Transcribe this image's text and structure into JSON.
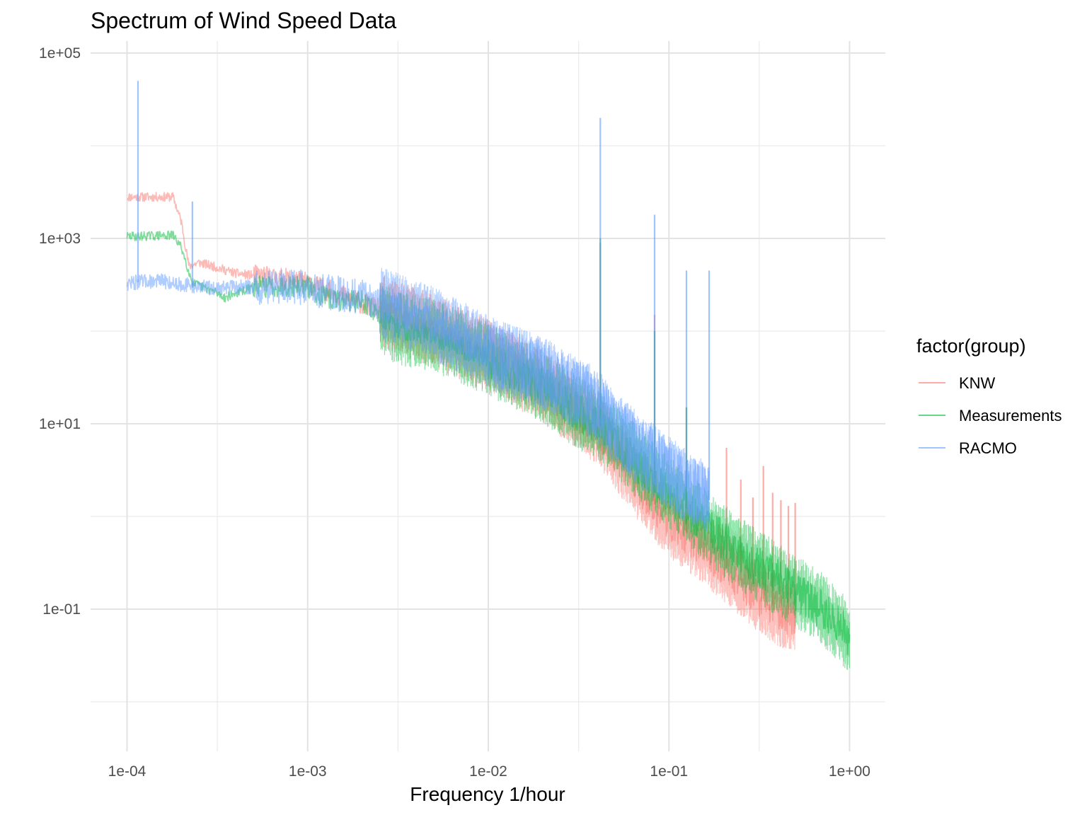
{
  "chart_data": {
    "type": "line",
    "title": "Spectrum of Wind Speed Data",
    "xlabel": "Frequency 1/hour",
    "ylabel": "",
    "x_scale": "log10",
    "y_scale": "log10",
    "xlim": [
      0.0001,
      1.0
    ],
    "ylim": [
      0.001,
      100000
    ],
    "x_ticks": [
      0.0001,
      0.001,
      0.01,
      0.1,
      1.0
    ],
    "x_tick_labels": [
      "1e-04",
      "1e-03",
      "1e-02",
      "1e-01",
      "1e+00"
    ],
    "y_ticks": [
      0.1,
      10,
      1000,
      100000
    ],
    "y_tick_labels": [
      "1e-01",
      "1e+01",
      "1e+03",
      "1e+05"
    ],
    "grid": true,
    "legend": {
      "title": "factor(group)",
      "position": "right"
    },
    "series": [
      {
        "name": "KNW",
        "color": "#F8766D",
        "x_max": 0.5,
        "points": [
          [
            0.0001,
            2800
          ],
          [
            0.00018,
            2800
          ],
          [
            0.0002,
            1500
          ],
          [
            0.00022,
            500
          ],
          [
            0.00025,
            550
          ],
          [
            0.0003,
            500
          ],
          [
            0.0004,
            420
          ],
          [
            0.0006,
            380
          ],
          [
            0.0008,
            360
          ],
          [
            0.001,
            330
          ],
          [
            0.002,
            200
          ],
          [
            0.003,
            150
          ],
          [
            0.005,
            100
          ],
          [
            0.01,
            55
          ],
          [
            0.02,
            25
          ],
          [
            0.03,
            14
          ],
          [
            0.04,
            9
          ],
          [
            0.05,
            5
          ],
          [
            0.07,
            2
          ],
          [
            0.1,
            0.9
          ],
          [
            0.15,
            0.5
          ],
          [
            0.2,
            0.3
          ],
          [
            0.3,
            0.15
          ],
          [
            0.4,
            0.1
          ],
          [
            0.5,
            0.08
          ]
        ],
        "spikes": [
          [
            0.0417,
            900
          ],
          [
            0.0833,
            150
          ],
          [
            0.125,
            15
          ],
          [
            0.2083,
            5.5
          ],
          [
            0.25,
            2.5
          ],
          [
            0.2917,
            1.6
          ],
          [
            0.3333,
            3.5
          ],
          [
            0.375,
            1.8
          ],
          [
            0.4167,
            1.5
          ],
          [
            0.4583,
            1.3
          ],
          [
            0.5,
            1.4
          ]
        ]
      },
      {
        "name": "Measurements",
        "color": "#00BA38",
        "x_max": 1.0,
        "points": [
          [
            0.0001,
            1050
          ],
          [
            0.00018,
            1080
          ],
          [
            0.0002,
            800
          ],
          [
            0.00023,
            330
          ],
          [
            0.0003,
            270
          ],
          [
            0.00035,
            230
          ],
          [
            0.0005,
            300
          ],
          [
            0.0008,
            310
          ],
          [
            0.001,
            300
          ],
          [
            0.0013,
            220
          ],
          [
            0.002,
            210
          ],
          [
            0.003,
            110
          ],
          [
            0.005,
            90
          ],
          [
            0.01,
            50
          ],
          [
            0.02,
            25
          ],
          [
            0.03,
            14
          ],
          [
            0.04,
            10
          ],
          [
            0.05,
            7
          ],
          [
            0.07,
            3.5
          ],
          [
            0.1,
            1.8
          ],
          [
            0.15,
            0.9
          ],
          [
            0.2,
            0.55
          ],
          [
            0.3,
            0.3
          ],
          [
            0.5,
            0.16
          ],
          [
            0.7,
            0.1
          ],
          [
            1.0,
            0.05
          ]
        ],
        "spikes": [
          [
            0.0417,
            1000
          ],
          [
            0.0833,
            100
          ],
          [
            0.125,
            15
          ]
        ]
      },
      {
        "name": "RACMO",
        "color": "#619CFF",
        "x_max": 0.167,
        "points": [
          [
            0.0001,
            330
          ],
          [
            0.00015,
            350
          ],
          [
            0.0002,
            320
          ],
          [
            0.0003,
            290
          ],
          [
            0.0005,
            300
          ],
          [
            0.0008,
            310
          ],
          [
            0.001,
            290
          ],
          [
            0.002,
            230
          ],
          [
            0.003,
            180
          ],
          [
            0.005,
            120
          ],
          [
            0.01,
            60
          ],
          [
            0.02,
            35
          ],
          [
            0.03,
            22
          ],
          [
            0.04,
            16
          ],
          [
            0.05,
            9
          ],
          [
            0.07,
            5
          ],
          [
            0.1,
            3
          ],
          [
            0.13,
            2
          ],
          [
            0.167,
            1.5
          ]
        ],
        "spikes": [
          [
            0.000115,
            50000
          ],
          [
            0.00023,
            2500
          ],
          [
            0.0417,
            20000
          ],
          [
            0.0833,
            1800
          ],
          [
            0.125,
            450
          ],
          [
            0.167,
            450
          ]
        ]
      }
    ]
  }
}
